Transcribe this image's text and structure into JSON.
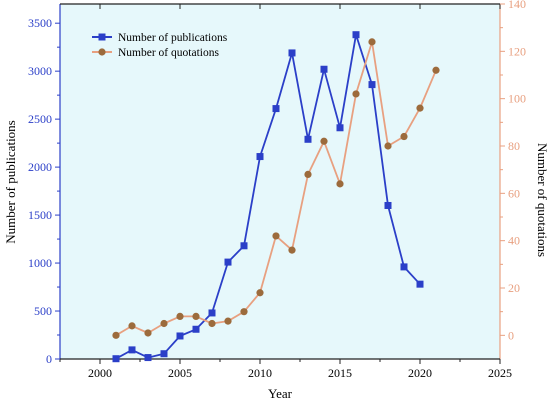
{
  "chart_data": {
    "type": "line",
    "xlabel": "Year",
    "ylabel_left": "Number of publications",
    "ylabel_right": "Number of quotations",
    "xlim": [
      1997.5,
      2025
    ],
    "ylim_left": [
      0,
      3700
    ],
    "ylim_right": [
      -10,
      140
    ],
    "x_ticks": [
      2000,
      2005,
      2010,
      2015,
      2020,
      2025
    ],
    "y_ticks_left": [
      0,
      500,
      1000,
      1500,
      2000,
      2500,
      3000,
      3500
    ],
    "y_ticks_right": [
      0,
      20,
      40,
      60,
      80,
      100,
      120,
      140
    ],
    "grid": false,
    "legend_position": "top-left",
    "plot_background": "#e6f8fb",
    "series": [
      {
        "name": "Number of publications",
        "axis": "left",
        "color": "#2b3fc8",
        "marker": "square",
        "x": [
          2001,
          2002,
          2003,
          2004,
          2005,
          2006,
          2007,
          2008,
          2009,
          2010,
          2011,
          2012,
          2013,
          2014,
          2015,
          2016,
          2017,
          2018,
          2019,
          2020
        ],
        "values": [
          3,
          95,
          15,
          55,
          240,
          310,
          480,
          1010,
          1180,
          2110,
          2610,
          3190,
          2290,
          3020,
          2410,
          3380,
          2860,
          1600,
          960,
          780
        ]
      },
      {
        "name": "Number of quotations",
        "axis": "right",
        "color": "#e8a080",
        "marker": "circle",
        "marker_fill": "#9c6b3c",
        "x": [
          2001,
          2002,
          2003,
          2004,
          2005,
          2006,
          2007,
          2008,
          2009,
          2010,
          2011,
          2012,
          2013,
          2014,
          2015,
          2016,
          2017,
          2018,
          2019,
          2020,
          2021
        ],
        "values": [
          0,
          4,
          1,
          5,
          8,
          8,
          5,
          6,
          10,
          18,
          42,
          36,
          68,
          82,
          64,
          102,
          124,
          80,
          84,
          96,
          112
        ]
      }
    ]
  }
}
